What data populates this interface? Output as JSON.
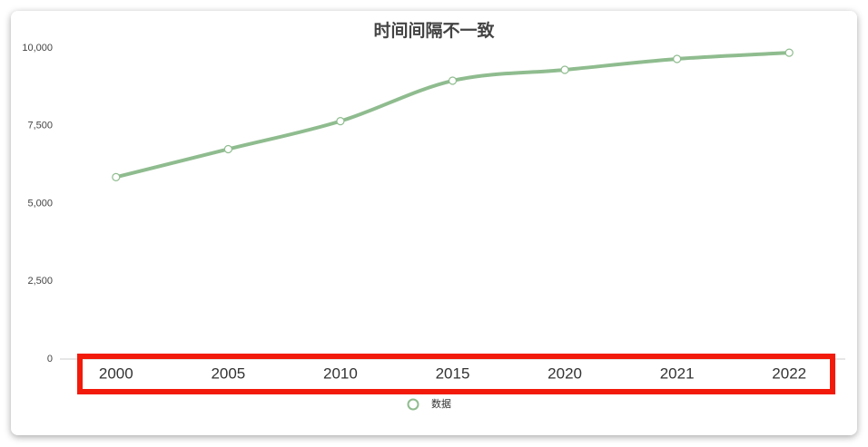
{
  "chart_data": {
    "type": "line",
    "title": "时间间隔不一致",
    "categories": [
      "2000",
      "2005",
      "2010",
      "2015",
      "2020",
      "2021",
      "2022"
    ],
    "series": [
      {
        "name": "数据",
        "color": "#8fbc8f",
        "values": [
          5850,
          6750,
          7650,
          8950,
          9300,
          9650,
          9850
        ]
      }
    ],
    "ylim": [
      0,
      10000
    ],
    "yticks": [
      0,
      {
        "value": 2500,
        "label": "2,500"
      },
      {
        "value": 5000,
        "label": "5,000"
      },
      {
        "value": 7500,
        "label": "7,500"
      },
      {
        "value": 10000,
        "label": "10,000"
      }
    ],
    "smooth": true,
    "legend": "bottom"
  }
}
